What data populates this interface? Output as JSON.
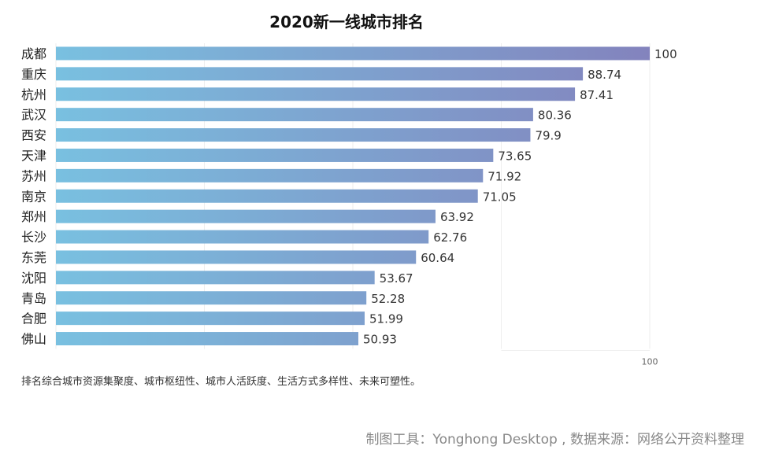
{
  "chart_data": {
    "type": "bar",
    "orientation": "horizontal",
    "title": "2020新一线城市排名",
    "categories": [
      "成都",
      "重庆",
      "杭州",
      "武汉",
      "西安",
      "天津",
      "苏州",
      "南京",
      "郑州",
      "长沙",
      "东莞",
      "沈阳",
      "青岛",
      "合肥",
      "佛山"
    ],
    "values": [
      100,
      88.74,
      87.41,
      80.36,
      79.9,
      73.65,
      71.92,
      71.05,
      63.92,
      62.76,
      60.64,
      53.67,
      52.28,
      51.99,
      50.93
    ],
    "value_labels": [
      "100",
      "88.74",
      "87.41",
      "80.36",
      "79.9",
      "73.65",
      "71.92",
      "71.05",
      "63.92",
      "62.76",
      "60.64",
      "53.67",
      "52.28",
      "51.99",
      "50.93"
    ],
    "xlim": [
      0,
      100
    ],
    "x_tick_labels": [
      "100"
    ],
    "grid": true,
    "colors": {
      "gradient_start": "#79c0e0",
      "gradient_end": "#8383bd"
    }
  },
  "note": "排名综合城市资源集聚度、城市枢纽性、城市人活跃度、生活方式多样性、未来可塑性。",
  "source": "制图工具：Yonghong Desktop , 数据来源：网络公开资料整理"
}
